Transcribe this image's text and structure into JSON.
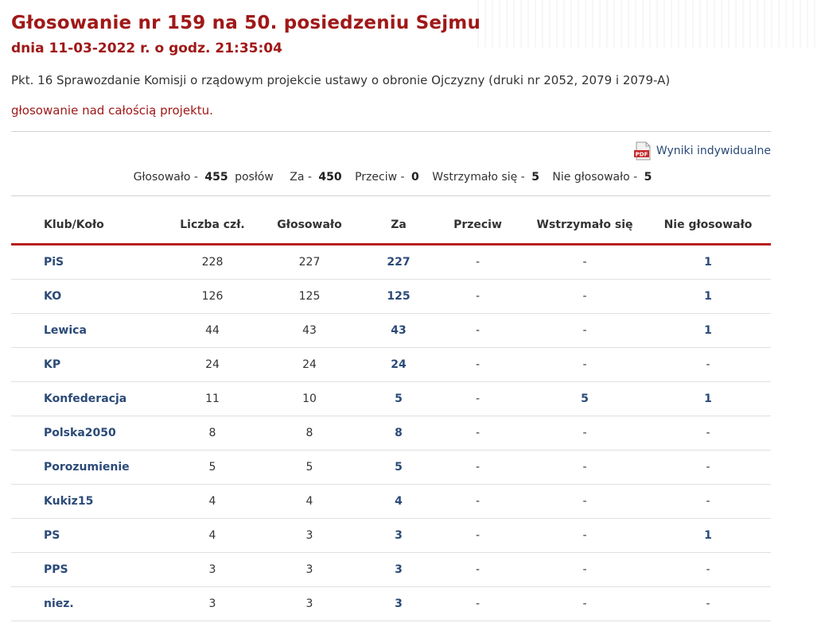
{
  "header": {
    "title": "Głosowanie nr 159 na 50. posiedzeniu Sejmu",
    "subtitle": "dnia 11-03-2022 r. o godz. 21:35:04"
  },
  "topic": "Pkt. 16 Sprawozdanie Komisji o rządowym projekcie ustawy o obronie Ojczyzny (druki nr 2052, 2079 i 2079-A)",
  "mode": "głosowanie nad całością projektu.",
  "pdf_link": {
    "label": "Wyniki indywidualne",
    "icon": "pdf-icon",
    "icon_text": "PDF"
  },
  "summary": {
    "voted_label": "Głosowało -",
    "voted_value": "455",
    "voted_suffix": "posłów",
    "za_label": "Za -",
    "za_value": "450",
    "przeciw_label": "Przeciw -",
    "przeciw_value": "0",
    "wstrzymalo_label": "Wstrzymało się -",
    "wstrzymalo_value": "5",
    "nie_label": "Nie głosowało -",
    "nie_value": "5"
  },
  "table": {
    "columns": [
      "Klub/Koło",
      "Liczba czł.",
      "Głosowało",
      "Za",
      "Przeciw",
      "Wstrzymało się",
      "Nie głosowało"
    ],
    "rows": [
      [
        "PiS",
        "228",
        "227",
        "227",
        "-",
        "-",
        "1"
      ],
      [
        "KO",
        "126",
        "125",
        "125",
        "-",
        "-",
        "1"
      ],
      [
        "Lewica",
        "44",
        "43",
        "43",
        "-",
        "-",
        "1"
      ],
      [
        "KP",
        "24",
        "24",
        "24",
        "-",
        "-",
        "-"
      ],
      [
        "Konfederacja",
        "11",
        "10",
        "5",
        "-",
        "5",
        "1"
      ],
      [
        "Polska2050",
        "8",
        "8",
        "8",
        "-",
        "-",
        "-"
      ],
      [
        "Porozumienie",
        "5",
        "5",
        "5",
        "-",
        "-",
        "-"
      ],
      [
        "Kukiz15",
        "4",
        "4",
        "4",
        "-",
        "-",
        "-"
      ],
      [
        "PS",
        "4",
        "3",
        "3",
        "-",
        "-",
        "1"
      ],
      [
        "PPS",
        "3",
        "3",
        "3",
        "-",
        "-",
        "-"
      ],
      [
        "niez.",
        "3",
        "3",
        "3",
        "-",
        "-",
        "-"
      ]
    ]
  },
  "colors": {
    "title_red": "#a01818",
    "header_rule_red": "#b71c1c",
    "link_blue": "#2b4a78"
  }
}
